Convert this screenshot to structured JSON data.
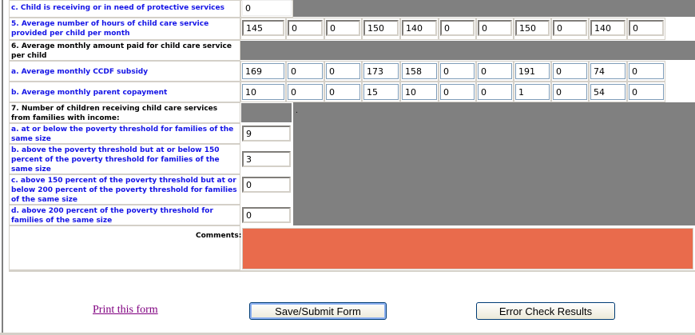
{
  "rows": {
    "c_protective": {
      "label": "c. Child is receiving or in need of protective services",
      "value": "0"
    },
    "q5": {
      "label": "5. Average number of hours of child care service provided per child per month",
      "values": [
        "145",
        "0",
        "0",
        "150",
        "140",
        "0",
        "0",
        "150",
        "0",
        "140",
        "0"
      ]
    },
    "q6": {
      "label": "6. Average monthly amount paid for child care service per child"
    },
    "q6a": {
      "label": "a. Average monthly CCDF subsidy",
      "values": [
        "169",
        "0",
        "0",
        "173",
        "158",
        "0",
        "0",
        "191",
        "0",
        "74",
        "0"
      ]
    },
    "q6b": {
      "label": "b. Average monthly parent copayment",
      "values": [
        "10",
        "0",
        "0",
        "15",
        "10",
        "0",
        "0",
        "1",
        "0",
        "54",
        "0"
      ]
    },
    "q7": {
      "label": "7. Number of children receiving child care services from families with income:",
      "dot": "."
    },
    "q7a": {
      "label": "a. at or below the poverty threshold for families of the same size",
      "value": "9"
    },
    "q7b": {
      "label": "b. above the poverty threshold but at or below 150 percent of the poverty threshold for families of the same size",
      "value": "3"
    },
    "q7c": {
      "label": "c. above 150 percent of the poverty threshold but at or below 200 percent of the poverty threshold for families of the same size",
      "value": "0"
    },
    "q7d": {
      "label": "d. above 200 percent of the poverty threshold for families of the same size",
      "value": "0"
    }
  },
  "comments": {
    "label": "Comments:",
    "value": "",
    "color": "#e96b4c"
  },
  "footer": {
    "print_link": "Print this form",
    "save_button": "Save/Submit Form",
    "error_button": "Error Check Results"
  }
}
